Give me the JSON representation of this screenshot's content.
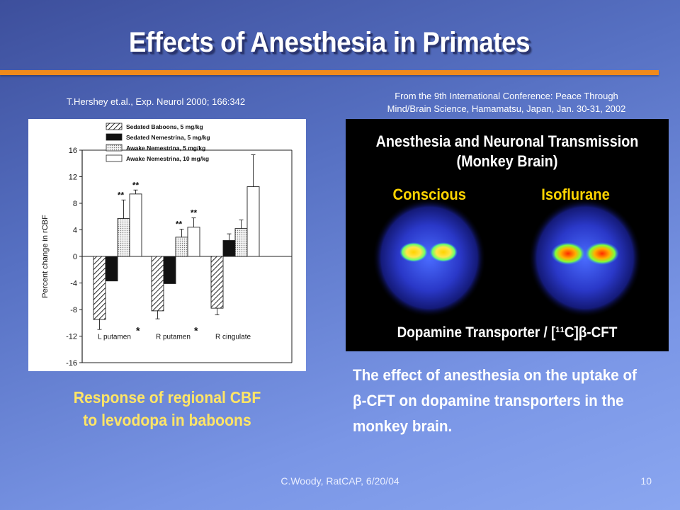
{
  "slide": {
    "title": "Effects of Anesthesia in Primates",
    "citation_left": "T.Hershey et.al.,  Exp. Neurol 2000; 166:342",
    "citation_right_line1": "From the 9th International Conference: Peace Through",
    "citation_right_line2": "Mind/Brain Science, Hamamatsu, Japan, Jan. 30-31, 2002",
    "chart_caption_line1": "Response of regional CBF",
    "chart_caption_line2": "to levodopa in baboons",
    "brain_caption": "The effect of anesthesia on the uptake of β-CFT on dopamine transporters in the monkey brain.",
    "footer": "C.Woody, RatCAP, 6/20/04",
    "page_number": "10",
    "accent_color": "#f08a1c",
    "caption_color": "#ffe566"
  },
  "brain_image": {
    "title_line1": "Anesthesia and Neuronal Transmission",
    "title_line2": "(Monkey Brain)",
    "label_left": "Conscious",
    "label_right": "Isoflurane",
    "bottom_label": "Dopamine Transporter / [¹¹C]β-CFT"
  },
  "chart_data": {
    "type": "bar",
    "ylabel": "Percent change in rCBF",
    "ylim": [
      -16,
      16
    ],
    "yticks": [
      16,
      12,
      8,
      4,
      0,
      -4,
      -8,
      -12,
      -16
    ],
    "categories": [
      "L putamen",
      "R putamen",
      "R cingulate"
    ],
    "category_marks": [
      "*",
      "*",
      ""
    ],
    "series": [
      {
        "name": "Sedated Baboons, 5 mg/kg",
        "pattern": "hatched",
        "values": [
          -9.5,
          -8.2,
          -7.8
        ],
        "errors": [
          1.5,
          1.2,
          1.0
        ]
      },
      {
        "name": "Sedated Nemestrina, 5 mg/kg",
        "pattern": "solid",
        "values": [
          -3.7,
          -4.1,
          2.4
        ],
        "errors": [
          0,
          0,
          1.0
        ]
      },
      {
        "name": "Awake Nemestrina, 5 mg/kg",
        "pattern": "dotted",
        "values": [
          5.7,
          2.9,
          4.2
        ],
        "errors": [
          2.8,
          1.2,
          1.3
        ]
      },
      {
        "name": "Awake Nemestrina, 10 mg/kg",
        "pattern": "open",
        "values": [
          9.4,
          4.4,
          10.5
        ],
        "errors": [
          0.6,
          1.4,
          4.8
        ]
      }
    ],
    "significance": [
      [
        "",
        "",
        "**",
        "**"
      ],
      [
        "",
        "",
        "**",
        "**"
      ],
      [
        "",
        "",
        "",
        ""
      ]
    ]
  }
}
